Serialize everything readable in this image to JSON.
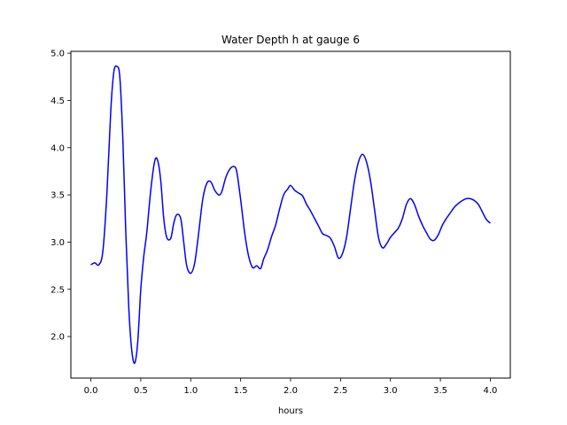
{
  "chart_data": {
    "type": "line",
    "title": "Water Depth h at gauge 6",
    "xlabel": "hours",
    "ylabel": "",
    "xlim": [
      -0.2,
      4.2
    ],
    "ylim": [
      1.56,
      5.02
    ],
    "xticks": [
      0.0,
      0.5,
      1.0,
      1.5,
      2.0,
      2.5,
      3.0,
      3.5,
      4.0
    ],
    "xtick_labels": [
      "0.0",
      "0.5",
      "1.0",
      "1.5",
      "2.0",
      "2.5",
      "3.0",
      "3.5",
      "4.0"
    ],
    "yticks": [
      2.0,
      2.5,
      3.0,
      3.5,
      4.0,
      4.5,
      5.0
    ],
    "ytick_labels": [
      "2.0",
      "2.5",
      "3.0",
      "3.5",
      "4.0",
      "4.5",
      "5.0"
    ],
    "grid": false,
    "legend": "none",
    "series": [
      {
        "color": "#0000ff",
        "x": [
          0.0,
          0.04,
          0.08,
          0.12,
          0.16,
          0.2,
          0.23,
          0.26,
          0.29,
          0.32,
          0.35,
          0.38,
          0.41,
          0.44,
          0.47,
          0.5,
          0.53,
          0.56,
          0.6,
          0.64,
          0.67,
          0.7,
          0.73,
          0.76,
          0.8,
          0.83,
          0.86,
          0.9,
          0.93,
          0.96,
          1.0,
          1.04,
          1.08,
          1.12,
          1.16,
          1.2,
          1.24,
          1.28,
          1.31,
          1.35,
          1.39,
          1.43,
          1.46,
          1.5,
          1.54,
          1.58,
          1.62,
          1.66,
          1.7,
          1.73,
          1.77,
          1.81,
          1.85,
          1.89,
          1.93,
          1.97,
          2.0,
          2.04,
          2.08,
          2.12,
          2.16,
          2.2,
          2.24,
          2.28,
          2.32,
          2.36,
          2.4,
          2.44,
          2.48,
          2.52,
          2.56,
          2.6,
          2.64,
          2.68,
          2.72,
          2.76,
          2.8,
          2.84,
          2.88,
          2.92,
          2.96,
          3.0,
          3.04,
          3.08,
          3.12,
          3.16,
          3.2,
          3.24,
          3.28,
          3.32,
          3.36,
          3.4,
          3.44,
          3.48,
          3.52,
          3.56,
          3.6,
          3.64,
          3.68,
          3.72,
          3.76,
          3.8,
          3.84,
          3.88,
          3.92,
          3.96,
          4.0
        ],
        "y": [
          2.76,
          2.78,
          2.76,
          2.9,
          3.5,
          4.4,
          4.8,
          4.86,
          4.75,
          4.1,
          3.1,
          2.3,
          1.85,
          1.72,
          1.95,
          2.5,
          2.85,
          3.1,
          3.55,
          3.86,
          3.86,
          3.65,
          3.25,
          3.05,
          3.04,
          3.2,
          3.29,
          3.25,
          3.0,
          2.75,
          2.67,
          2.78,
          3.1,
          3.45,
          3.62,
          3.64,
          3.55,
          3.5,
          3.53,
          3.68,
          3.77,
          3.8,
          3.75,
          3.45,
          3.1,
          2.85,
          2.73,
          2.75,
          2.72,
          2.82,
          2.92,
          3.06,
          3.18,
          3.35,
          3.5,
          3.56,
          3.6,
          3.55,
          3.52,
          3.49,
          3.4,
          3.33,
          3.25,
          3.17,
          3.09,
          3.07,
          3.04,
          2.95,
          2.83,
          2.88,
          3.05,
          3.35,
          3.65,
          3.85,
          3.93,
          3.85,
          3.65,
          3.35,
          3.05,
          2.94,
          2.98,
          3.05,
          3.1,
          3.15,
          3.25,
          3.4,
          3.46,
          3.4,
          3.28,
          3.18,
          3.1,
          3.03,
          3.02,
          3.08,
          3.18,
          3.25,
          3.31,
          3.37,
          3.41,
          3.44,
          3.46,
          3.46,
          3.44,
          3.4,
          3.32,
          3.24,
          3.2
        ]
      }
    ]
  }
}
